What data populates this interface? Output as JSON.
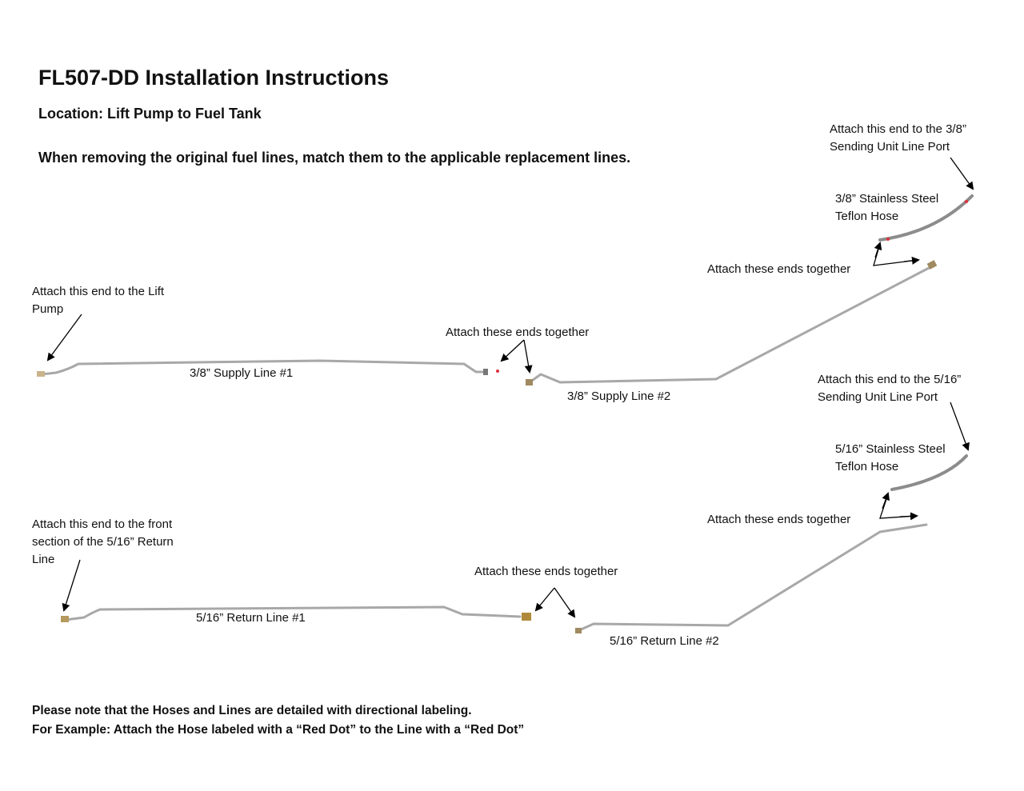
{
  "title": "FL507-DD Installation Instructions",
  "location": "Location: Lift Pump to Fuel Tank",
  "instruction": "When removing the original fuel lines, match them to the applicable replacement lines.",
  "labels": {
    "lift_pump": [
      "Attach this end to the Lift",
      "Pump"
    ],
    "supply1": "3/8” Supply Line #1",
    "supply_join": "Attach these ends together",
    "supply2": "3/8” Supply Line #2",
    "hose38_join": "Attach these ends together",
    "hose38": [
      "3/8” Stainless Steel",
      "Teflon Hose"
    ],
    "port38": [
      "Attach this end to the 3/8”",
      "Sending Unit Line Port"
    ],
    "port516": [
      "Attach this end to the 5/16”",
      "Sending Unit Line Port"
    ],
    "hose516": [
      "5/16” Stainless Steel",
      "Teflon Hose"
    ],
    "hose516_join": "Attach these ends together",
    "return_front": [
      "Attach this end to the front",
      "section of the 5/16” Return",
      "Line"
    ],
    "return_join": "Attach these ends together",
    "return1": "5/16” Return Line #1",
    "return2": "5/16” Return Line #2"
  },
  "footer": [
    "Please note that the Hoses and Lines are detailed with directional labeling.",
    "For Example: Attach the Hose labeled with a “Red Dot” to the Line with a “Red Dot”"
  ],
  "colors": {
    "red_dot": "#e0303a",
    "pipe": "#a8a8a8"
  }
}
